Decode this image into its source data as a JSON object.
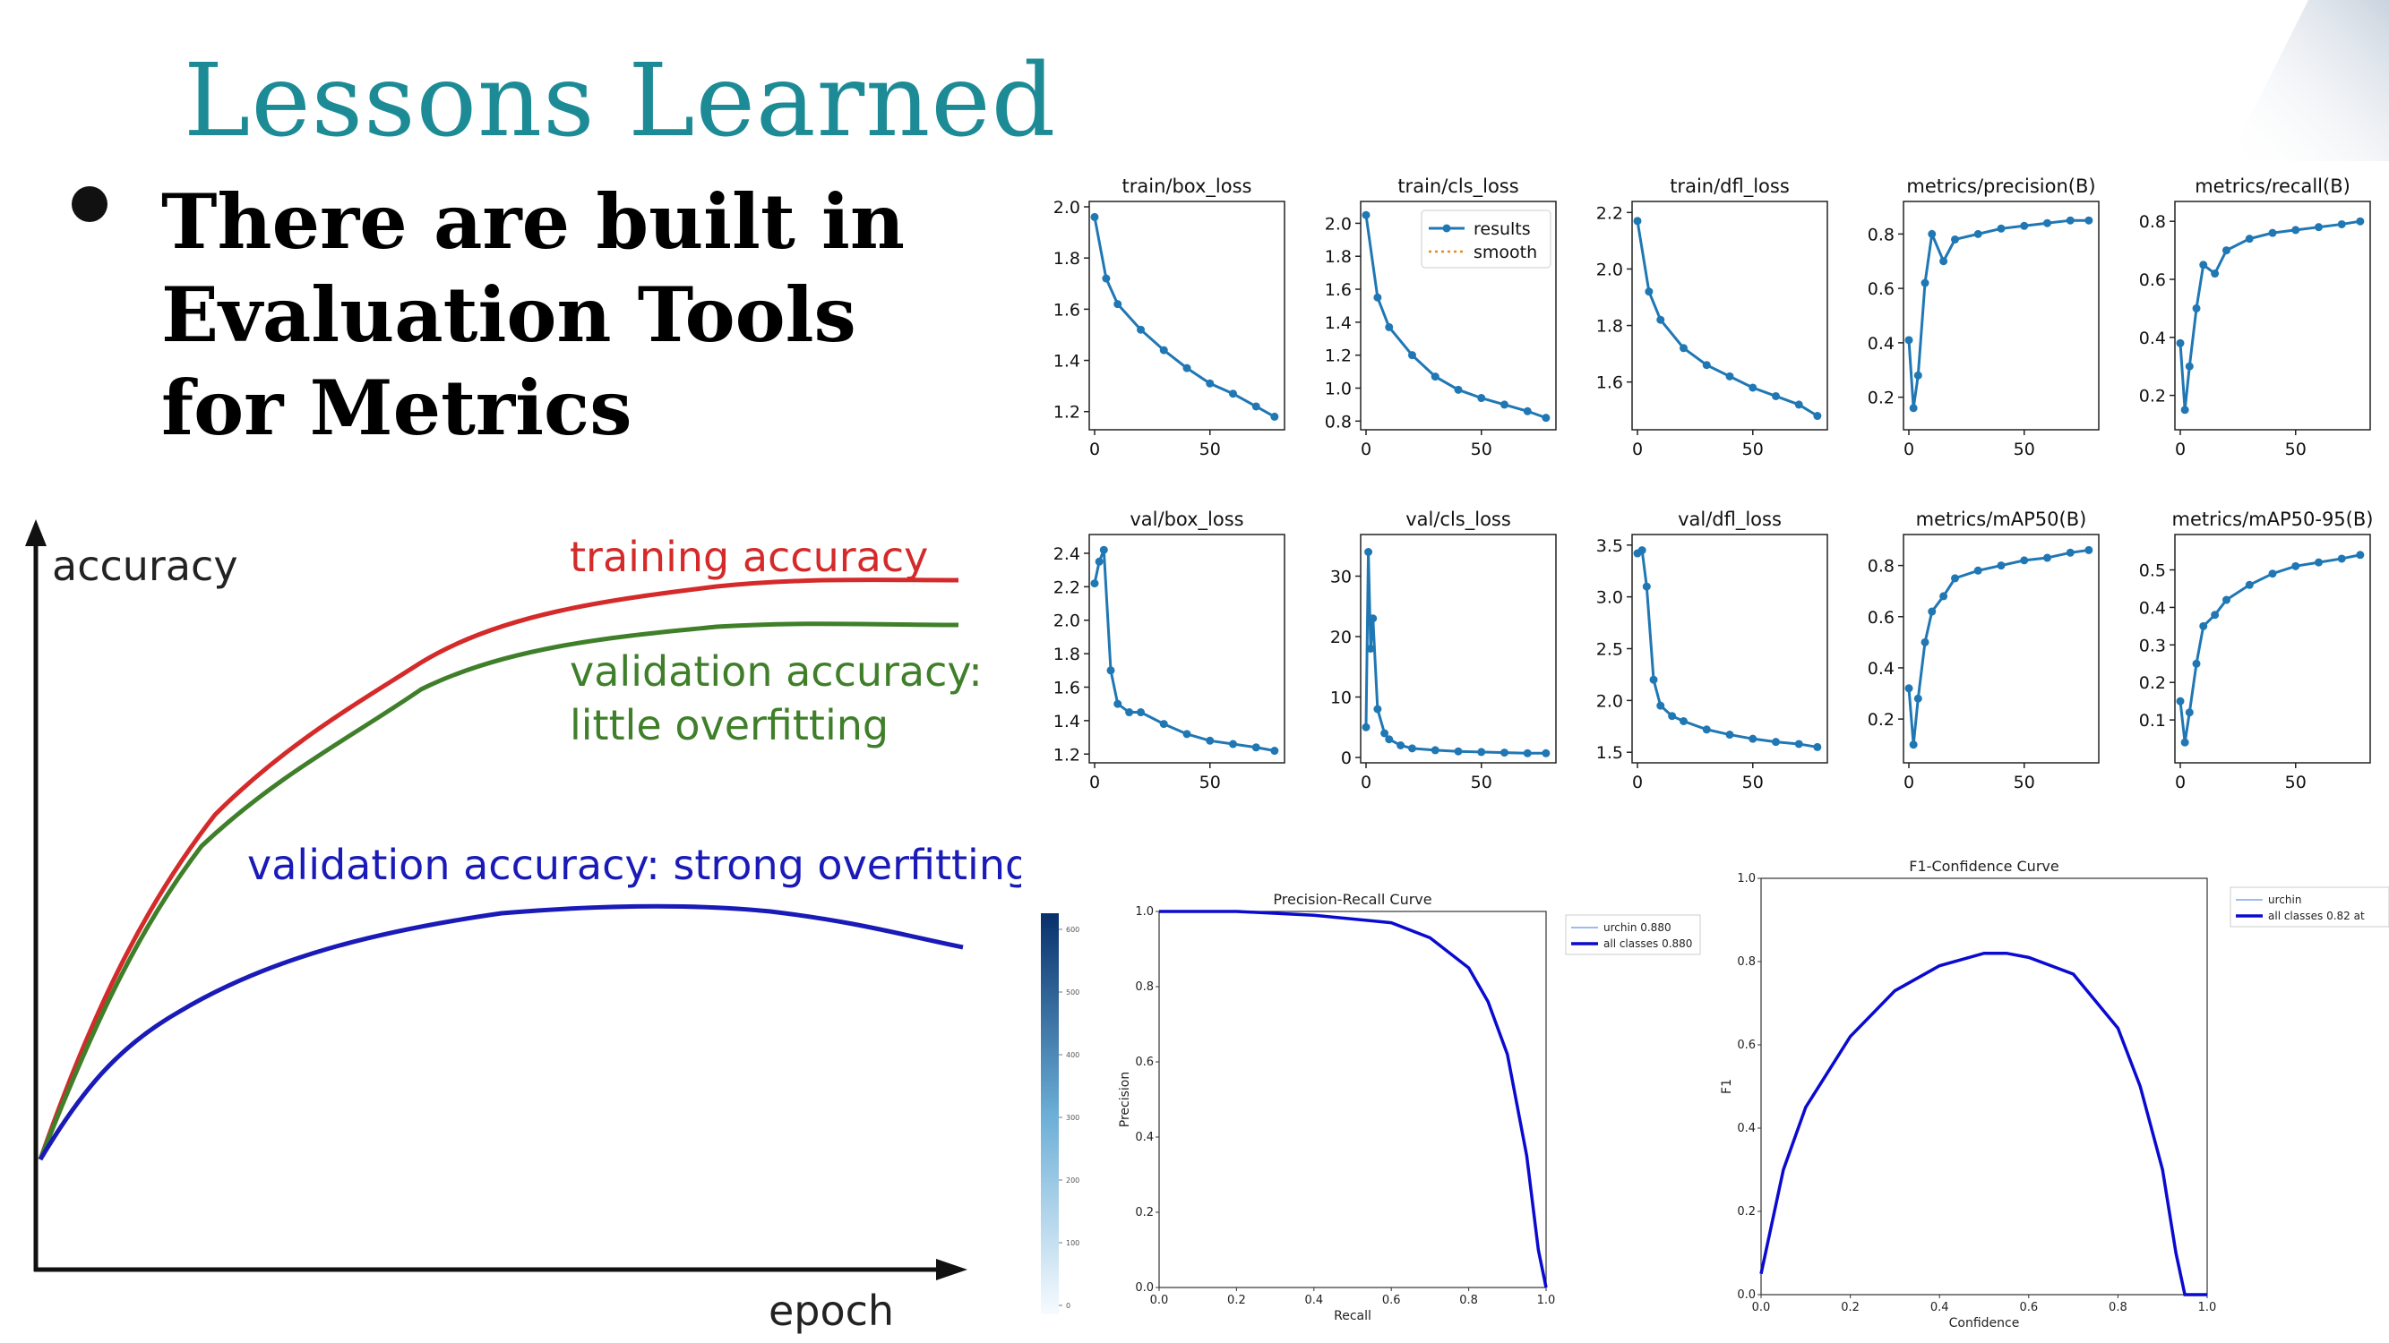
{
  "slide": {
    "title": "Lessons Learned",
    "bullet": "There are built in Evaluation Tools for Metrics"
  },
  "overfit_diagram": {
    "y_axis_label": "accuracy",
    "x_axis_label": "epoch",
    "training_label": "training accuracy",
    "val_little_line1": "validation accuracy:",
    "val_little_line2": "little overfitting",
    "val_strong_label": "validation accuracy: strong overfitting",
    "colors": {
      "training": "#d42a2a",
      "val_little": "#3f7f2a",
      "val_strong": "#1a1ab8"
    }
  },
  "chart_data": [
    {
      "type": "line",
      "title": "train/box_loss",
      "x": [
        0,
        5,
        10,
        20,
        30,
        40,
        50,
        60,
        70,
        78
      ],
      "values": [
        1.96,
        1.72,
        1.62,
        1.52,
        1.44,
        1.37,
        1.31,
        1.27,
        1.22,
        1.18
      ],
      "ylim": [
        1.15,
        2.0
      ],
      "yticks": [
        "1.2",
        "1.4",
        "1.6",
        "1.8",
        "2.0"
      ],
      "xticks": [
        "0",
        "50"
      ]
    },
    {
      "type": "line",
      "title": "train/cls_loss",
      "x": [
        0,
        5,
        10,
        20,
        30,
        40,
        50,
        60,
        70,
        78
      ],
      "values": [
        2.05,
        1.55,
        1.37,
        1.2,
        1.07,
        0.99,
        0.94,
        0.9,
        0.86,
        0.82
      ],
      "ylim": [
        0.78,
        2.1
      ],
      "yticks": [
        "0.8",
        "1.0",
        "1.2",
        "1.4",
        "1.6",
        "1.8",
        "2.0"
      ],
      "xticks": [
        "0",
        "50"
      ],
      "legend": [
        "results",
        "smooth"
      ]
    },
    {
      "type": "line",
      "title": "train/dfl_loss",
      "x": [
        0,
        5,
        10,
        20,
        30,
        40,
        50,
        60,
        70,
        78
      ],
      "values": [
        2.17,
        1.92,
        1.82,
        1.72,
        1.66,
        1.62,
        1.58,
        1.55,
        1.52,
        1.48
      ],
      "ylim": [
        1.45,
        2.22
      ],
      "yticks": [
        "1.6",
        "1.8",
        "2.0",
        "2.2"
      ],
      "xticks": [
        "0",
        "50"
      ]
    },
    {
      "type": "line",
      "title": "metrics/precision(B)",
      "x": [
        0,
        2,
        4,
        7,
        10,
        15,
        20,
        30,
        40,
        50,
        60,
        70,
        78
      ],
      "values": [
        0.41,
        0.16,
        0.28,
        0.62,
        0.8,
        0.7,
        0.78,
        0.8,
        0.82,
        0.83,
        0.84,
        0.85,
        0.85
      ],
      "ylim": [
        0.1,
        0.9
      ],
      "yticks": [
        "0.2",
        "0.4",
        "0.6",
        "0.8"
      ],
      "xticks": [
        "0",
        "50"
      ]
    },
    {
      "type": "line",
      "title": "metrics/recall(B)",
      "x": [
        0,
        2,
        4,
        7,
        10,
        15,
        20,
        30,
        40,
        50,
        60,
        70,
        78
      ],
      "values": [
        0.38,
        0.15,
        0.3,
        0.5,
        0.65,
        0.62,
        0.7,
        0.74,
        0.76,
        0.77,
        0.78,
        0.79,
        0.8
      ],
      "ylim": [
        0.1,
        0.85
      ],
      "yticks": [
        "0.2",
        "0.4",
        "0.6",
        "0.8"
      ],
      "xticks": [
        "0",
        "50"
      ]
    },
    {
      "type": "line",
      "title": "val/box_loss",
      "x": [
        0,
        2,
        4,
        7,
        10,
        15,
        20,
        30,
        40,
        50,
        60,
        70,
        78
      ],
      "values": [
        2.22,
        2.35,
        2.42,
        1.7,
        1.5,
        1.45,
        1.45,
        1.38,
        1.32,
        1.28,
        1.26,
        1.24,
        1.22
      ],
      "ylim": [
        1.18,
        2.48
      ],
      "yticks": [
        "1.2",
        "1.4",
        "1.6",
        "1.8",
        "2.0",
        "2.2",
        "2.4"
      ],
      "xticks": [
        "0",
        "50"
      ]
    },
    {
      "type": "line",
      "title": "val/cls_loss",
      "x": [
        0,
        1,
        2,
        3,
        5,
        8,
        10,
        15,
        20,
        30,
        40,
        50,
        60,
        70,
        78
      ],
      "values": [
        5,
        34,
        18,
        23,
        8,
        4,
        3,
        2,
        1.5,
        1.2,
        1,
        0.9,
        0.8,
        0.7,
        0.7
      ],
      "ylim": [
        0,
        36
      ],
      "yticks": [
        "0",
        "10",
        "20",
        "30"
      ],
      "xticks": [
        "0",
        "50"
      ]
    },
    {
      "type": "line",
      "title": "val/dfl_loss",
      "x": [
        0,
        2,
        4,
        7,
        10,
        15,
        20,
        30,
        40,
        50,
        60,
        70,
        78
      ],
      "values": [
        3.42,
        3.45,
        3.1,
        2.2,
        1.95,
        1.85,
        1.8,
        1.72,
        1.67,
        1.63,
        1.6,
        1.58,
        1.55
      ],
      "ylim": [
        1.45,
        3.55
      ],
      "yticks": [
        "1.5",
        "2.0",
        "2.5",
        "3.0",
        "3.5"
      ],
      "xticks": [
        "0",
        "50"
      ]
    },
    {
      "type": "line",
      "title": "metrics/mAP50(B)",
      "x": [
        0,
        2,
        4,
        7,
        10,
        15,
        20,
        30,
        40,
        50,
        60,
        70,
        78
      ],
      "values": [
        0.32,
        0.1,
        0.28,
        0.5,
        0.62,
        0.68,
        0.75,
        0.78,
        0.8,
        0.82,
        0.83,
        0.85,
        0.86
      ],
      "ylim": [
        0.05,
        0.9
      ],
      "yticks": [
        "0.2",
        "0.4",
        "0.6",
        "0.8"
      ],
      "xticks": [
        "0",
        "50"
      ]
    },
    {
      "type": "line",
      "title": "metrics/mAP50-95(B)",
      "x": [
        0,
        2,
        4,
        7,
        10,
        15,
        20,
        30,
        40,
        50,
        60,
        70,
        78
      ],
      "values": [
        0.15,
        0.04,
        0.12,
        0.25,
        0.35,
        0.38,
        0.42,
        0.46,
        0.49,
        0.51,
        0.52,
        0.53,
        0.54
      ],
      "ylim": [
        0.0,
        0.58
      ],
      "yticks": [
        "0.1",
        "0.2",
        "0.3",
        "0.4",
        "0.5"
      ],
      "xticks": [
        "0",
        "50"
      ]
    },
    {
      "type": "line",
      "title": "Precision-Recall Curve",
      "xlabel": "Recall",
      "ylabel": "Precision",
      "x": [
        0,
        0.2,
        0.4,
        0.6,
        0.7,
        0.8,
        0.85,
        0.9,
        0.95,
        0.98,
        1.0
      ],
      "values": [
        1.0,
        1.0,
        0.99,
        0.97,
        0.93,
        0.85,
        0.76,
        0.62,
        0.35,
        0.1,
        0.0
      ],
      "xlim": [
        0,
        1
      ],
      "ylim": [
        0,
        1
      ],
      "legend": [
        "urchin 0.880",
        "all classes 0.880"
      ]
    },
    {
      "type": "line",
      "title": "F1-Confidence Curve",
      "xlabel": "Confidence",
      "ylabel": "F1",
      "x": [
        0,
        0.05,
        0.1,
        0.2,
        0.3,
        0.4,
        0.5,
        0.55,
        0.6,
        0.7,
        0.8,
        0.85,
        0.9,
        0.93,
        0.95,
        1.0
      ],
      "values": [
        0.05,
        0.3,
        0.45,
        0.62,
        0.73,
        0.79,
        0.82,
        0.82,
        0.81,
        0.77,
        0.64,
        0.5,
        0.3,
        0.1,
        0.0,
        0.0
      ],
      "xlim": [
        0,
        1
      ],
      "ylim": [
        0,
        1
      ],
      "legend": [
        "urchin",
        "all classes 0.82 at"
      ]
    }
  ],
  "colorbar_ticks": [
    "600",
    "500",
    "400",
    "300",
    "200",
    "100",
    "0"
  ]
}
